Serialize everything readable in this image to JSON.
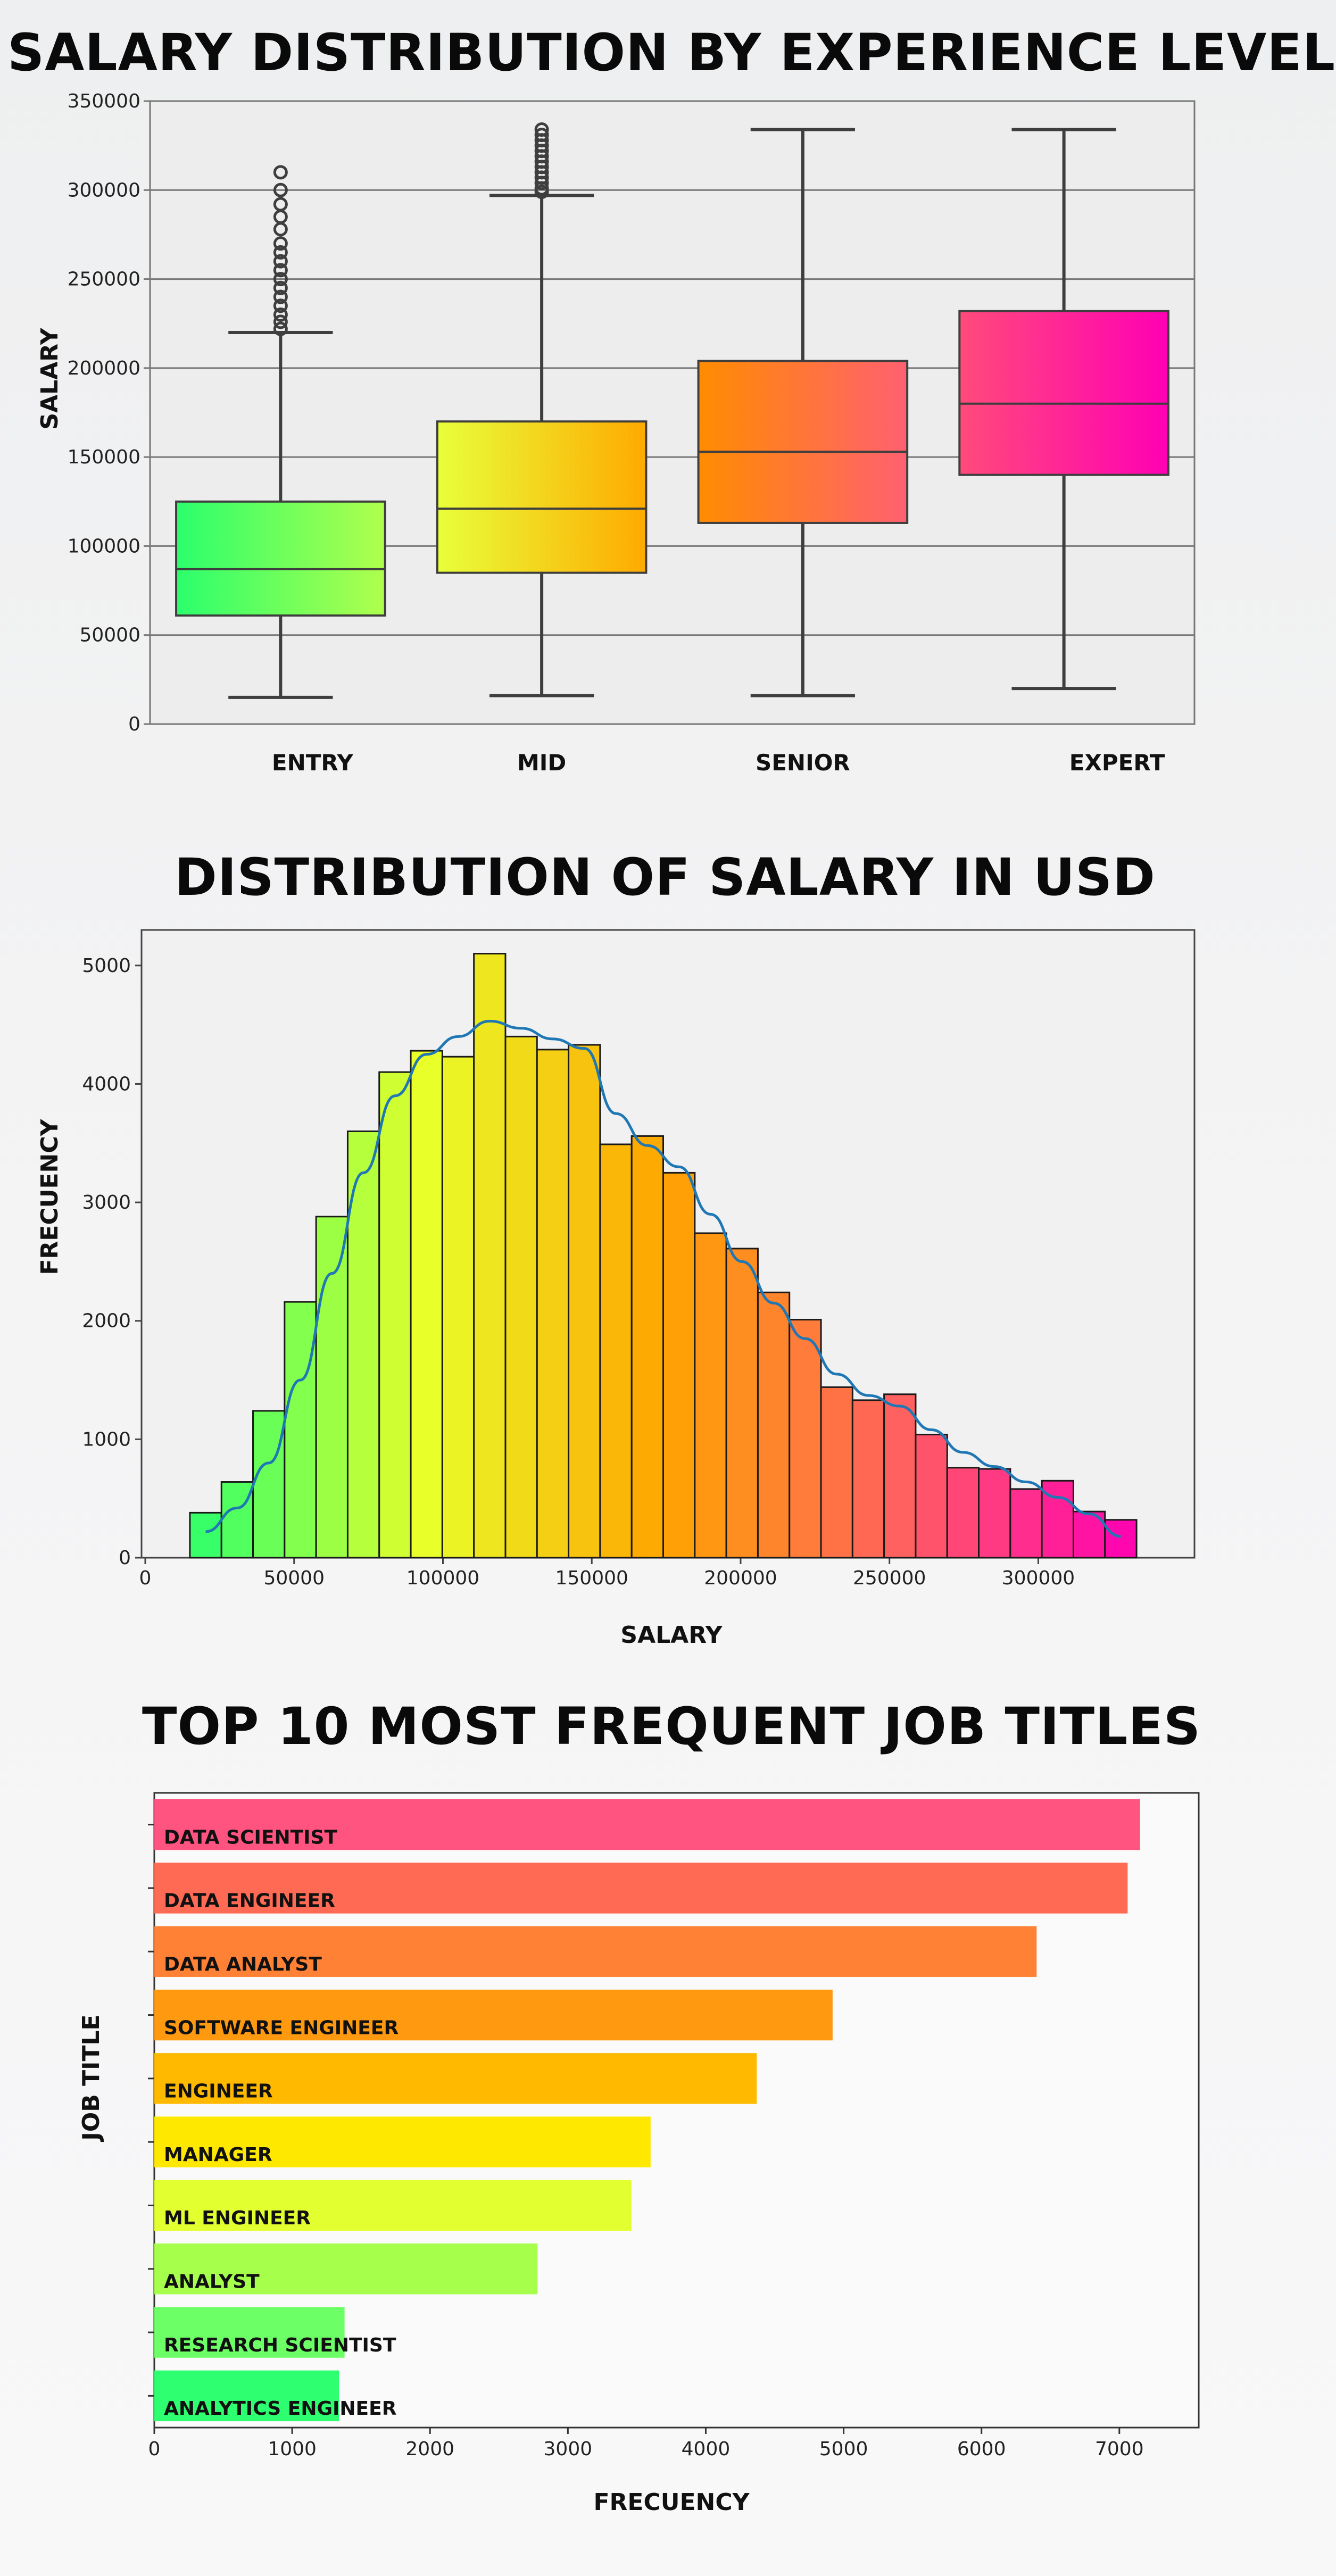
{
  "chart_data": [
    {
      "type": "box",
      "title": "SALARY DISTRIBUTION BY EXPERIENCE LEVEL",
      "xlabel": "",
      "ylabel": "SALARY",
      "ylim": [
        0,
        350000
      ],
      "yticks": [
        0,
        50000,
        100000,
        150000,
        200000,
        250000,
        300000,
        350000
      ],
      "grid": true,
      "categories": [
        "ENTRY",
        "MID",
        "SENIOR",
        "EXPERT"
      ],
      "boxes": [
        {
          "name": "ENTRY",
          "min": 15000,
          "q1": 61000,
          "median": 87000,
          "q3": 125000,
          "max": 220000,
          "outliers": [
            222000,
            226000,
            230000,
            235000,
            240000,
            245000,
            250000,
            255000,
            260000,
            265000,
            270000,
            278000,
            285000,
            292000,
            300000,
            310000
          ],
          "colors": [
            "#2bff6c",
            "#b0ff4c"
          ]
        },
        {
          "name": "MID",
          "min": 16000,
          "q1": 85000,
          "median": 121000,
          "q3": 170000,
          "max": 297000,
          "outliers": [
            299000,
            301000,
            304000,
            307000,
            310000,
            313000,
            316000,
            319000,
            322000,
            325000,
            328000,
            331000,
            334000
          ],
          "colors": [
            "#e8ff3a",
            "#ffaa00"
          ]
        },
        {
          "name": "SENIOR",
          "min": 16000,
          "q1": 113000,
          "median": 153000,
          "q3": 204000,
          "max": 334000,
          "outliers": [],
          "colors": [
            "#ff8c00",
            "#ff6070"
          ]
        },
        {
          "name": "EXPERT",
          "min": 20000,
          "q1": 140000,
          "median": 180000,
          "q3": 232000,
          "max": 334000,
          "outliers": [],
          "colors": [
            "#ff4a7a",
            "#ff00b4"
          ]
        }
      ]
    },
    {
      "type": "histogram",
      "title": "DISTRIBUTION OF SALARY IN USD",
      "xlabel": "SALARY",
      "ylabel": "FRECUENCY",
      "xlim": [
        0,
        350000
      ],
      "ylim": [
        0,
        5300
      ],
      "xticks": [
        0,
        50000,
        100000,
        150000,
        200000,
        250000,
        300000
      ],
      "yticks": [
        0,
        1000,
        2000,
        3000,
        4000,
        5000
      ],
      "bin_start": 15000,
      "bin_width": 10600,
      "values": [
        380,
        640,
        1240,
        2160,
        2880,
        3600,
        4100,
        4280,
        4230,
        5100,
        4400,
        4290,
        4330,
        3490,
        3560,
        3250,
        2740,
        2610,
        2240,
        2010,
        1440,
        1330,
        1380,
        1040,
        760,
        750,
        580,
        650,
        390,
        320
      ],
      "kde": [
        220,
        420,
        800,
        1500,
        2400,
        3250,
        3900,
        4250,
        4400,
        4530,
        4470,
        4380,
        4300,
        3750,
        3480,
        3300,
        2900,
        2500,
        2150,
        1850,
        1550,
        1370,
        1280,
        1080,
        890,
        770,
        640,
        510,
        370,
        180
      ],
      "kde_color": "#1f77b4",
      "gradient": [
        "#2bff6c",
        "#e8ff2a",
        "#ffa500",
        "#ff6060",
        "#ff00b4"
      ]
    },
    {
      "type": "bar",
      "orientation": "horizontal",
      "title": "TOP 10 MOST FREQUENT JOB TITLES",
      "xlabel": "FRECUENCY",
      "ylabel": "JOB TITLE",
      "xlim": [
        0,
        7500
      ],
      "xticks": [
        0,
        1000,
        2000,
        3000,
        4000,
        5000,
        6000,
        7000
      ],
      "categories": [
        "DATA SCIENTIST",
        "DATA ENGINEER",
        "DATA ANALYST",
        "SOFTWARE ENGINEER",
        "ENGINEER",
        "MANAGER",
        "ML ENGINEER",
        "ANALYST",
        "RESEARCH SCIENTIST",
        "ANALYTICS ENGINEER"
      ],
      "values": [
        7150,
        7060,
        6400,
        4920,
        4370,
        3600,
        3460,
        2780,
        1380,
        1340
      ],
      "colors": [
        "#ff5380",
        "#ff6a55",
        "#ff8135",
        "#ff9a10",
        "#ffba00",
        "#ffe800",
        "#e2ff30",
        "#a6ff4a",
        "#6cff66",
        "#2eff70"
      ]
    }
  ]
}
